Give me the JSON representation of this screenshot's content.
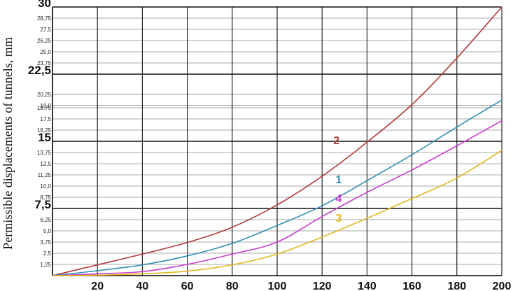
{
  "chart_data": {
    "type": "line",
    "title": "",
    "xlabel": "",
    "ylabel": "Permissible displacements of tunnels, mm",
    "xlim": [
      0,
      200
    ],
    "ylim": [
      0,
      30
    ],
    "x_ticks": [
      {
        "value": 20,
        "label": "20"
      },
      {
        "value": 40,
        "label": "40"
      },
      {
        "value": 60,
        "label": "60"
      },
      {
        "value": 80,
        "label": "80"
      },
      {
        "value": 100,
        "label": "100"
      },
      {
        "value": 120,
        "label": "120"
      },
      {
        "value": 140,
        "label": "140"
      },
      {
        "value": 160,
        "label": "160"
      },
      {
        "value": 180,
        "label": "180"
      },
      {
        "value": 200,
        "label": "200"
      }
    ],
    "y_ticks": [
      {
        "value": 1.25,
        "label": "1,25",
        "major": false
      },
      {
        "value": 2.5,
        "label": "2,5",
        "major": false
      },
      {
        "value": 3.75,
        "label": "3,75",
        "major": false
      },
      {
        "value": 5.0,
        "label": "5,0",
        "major": false
      },
      {
        "value": 6.25,
        "label": "6,25",
        "major": false
      },
      {
        "value": 7.5,
        "label": "7,5",
        "major": true
      },
      {
        "value": 8.75,
        "label": "8,75",
        "major": false
      },
      {
        "value": 10.0,
        "label": "10,0",
        "major": false
      },
      {
        "value": 11.25,
        "label": "11,25",
        "major": false
      },
      {
        "value": 12.5,
        "label": "12,5",
        "major": false
      },
      {
        "value": 13.75,
        "label": "13,75",
        "major": false
      },
      {
        "value": 15,
        "label": "15",
        "major": true
      },
      {
        "value": 16.25,
        "label": "16,25",
        "major": false
      },
      {
        "value": 17.5,
        "label": "17,5",
        "major": false
      },
      {
        "value": 18.75,
        "label": "18,75",
        "major": false
      },
      {
        "value": 19.0,
        "label": "19,0",
        "major": false
      },
      {
        "value": 20.25,
        "label": "20,25",
        "major": false
      },
      {
        "value": 22.5,
        "label": "22,5",
        "major": true
      },
      {
        "value": 23.75,
        "label": "23,75",
        "major": false
      },
      {
        "value": 25.0,
        "label": "25,0",
        "major": false
      },
      {
        "value": 26.25,
        "label": "26,25",
        "major": false
      },
      {
        "value": 27.5,
        "label": "27,5",
        "major": false
      },
      {
        "value": 28.75,
        "label": "28,75",
        "major": false
      },
      {
        "value": 30,
        "label": "30",
        "major": true
      }
    ],
    "grid": true,
    "series": [
      {
        "label": "2",
        "color": "#b03a3a",
        "label_at": [
          125,
          14.7
        ],
        "x": [
          0,
          20,
          40,
          60,
          80,
          100,
          120,
          140,
          160,
          180,
          200
        ],
        "y": [
          0,
          1.2,
          2.4,
          3.7,
          5.4,
          7.9,
          11.1,
          14.9,
          19.1,
          24.3,
          30.0
        ]
      },
      {
        "label": "1",
        "color": "#2f8fb3",
        "label_at": [
          126,
          10.3
        ],
        "x": [
          0,
          20,
          40,
          60,
          80,
          100,
          120,
          140,
          160,
          180,
          200
        ],
        "y": [
          0,
          0.55,
          1.2,
          2.2,
          3.6,
          5.6,
          7.8,
          10.6,
          13.5,
          16.6,
          19.6
        ]
      },
      {
        "label": "4",
        "color": "#c83ccf",
        "label_at": [
          126,
          8.2
        ],
        "x": [
          0,
          20,
          40,
          60,
          80,
          100,
          120,
          140,
          160,
          180,
          200
        ],
        "y": [
          0,
          0.2,
          0.45,
          1.25,
          2.4,
          3.75,
          6.6,
          9.3,
          11.8,
          14.5,
          17.3
        ]
      },
      {
        "label": "3",
        "color": "#e0b820",
        "label_at": [
          126,
          6.0
        ],
        "x": [
          0,
          20,
          40,
          60,
          80,
          100,
          120,
          140,
          160,
          180,
          200
        ],
        "y": [
          0,
          0.05,
          0.2,
          0.5,
          1.2,
          2.4,
          4.3,
          6.4,
          8.6,
          10.9,
          14.0
        ]
      }
    ]
  },
  "colors": {
    "major_grid": "#111111",
    "minor_grid": "#555555",
    "background": "#ffffff"
  }
}
